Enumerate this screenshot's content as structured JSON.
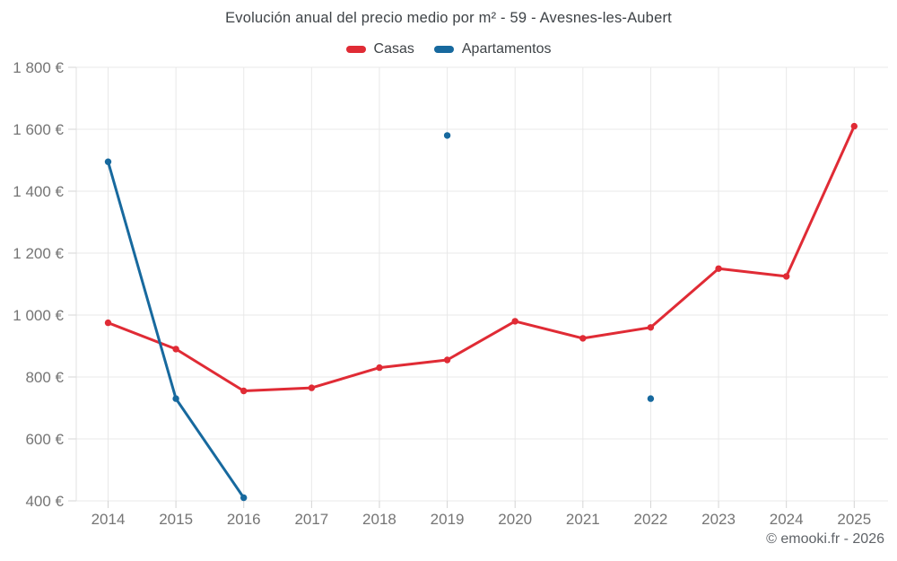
{
  "header": {
    "title": "Evolución anual del precio medio por m² - 59 - Avesnes-les-Aubert"
  },
  "legend": {
    "items": [
      {
        "label": "Casas",
        "color": "#e02b35"
      },
      {
        "label": "Apartamentos",
        "color": "#17699e"
      }
    ]
  },
  "footer": {
    "credit": "© emooki.fr - 2026"
  },
  "chart_data": {
    "type": "line",
    "title": "Evolución anual del precio medio por m² - 59 - Avesnes-les-Aubert",
    "categories": [
      "2014",
      "2015",
      "2016",
      "2017",
      "2018",
      "2019",
      "2020",
      "2021",
      "2022",
      "2023",
      "2024",
      "2025"
    ],
    "series": [
      {
        "name": "Casas",
        "color": "#e02b35",
        "values": [
          975,
          890,
          755,
          765,
          830,
          855,
          980,
          925,
          960,
          1150,
          1125,
          1610
        ]
      },
      {
        "name": "Apartamentos",
        "color": "#17699e",
        "values": [
          1495,
          730,
          410,
          null,
          null,
          1580,
          null,
          null,
          730,
          null,
          null,
          null
        ]
      }
    ],
    "ylim": [
      400,
      1800
    ],
    "yticks": [
      {
        "value": 400,
        "label": "400 €"
      },
      {
        "value": 600,
        "label": "600 €"
      },
      {
        "value": 800,
        "label": "800 €"
      },
      {
        "value": 1000,
        "label": "1 000 €"
      },
      {
        "value": 1200,
        "label": "1 200 €"
      },
      {
        "value": 1400,
        "label": "1 400 €"
      },
      {
        "value": 1600,
        "label": "1 600 €"
      },
      {
        "value": 1800,
        "label": "1 800 €"
      }
    ],
    "xlabel": "",
    "ylabel": "",
    "grid": true,
    "legend_position": "top",
    "marker": "circle"
  }
}
